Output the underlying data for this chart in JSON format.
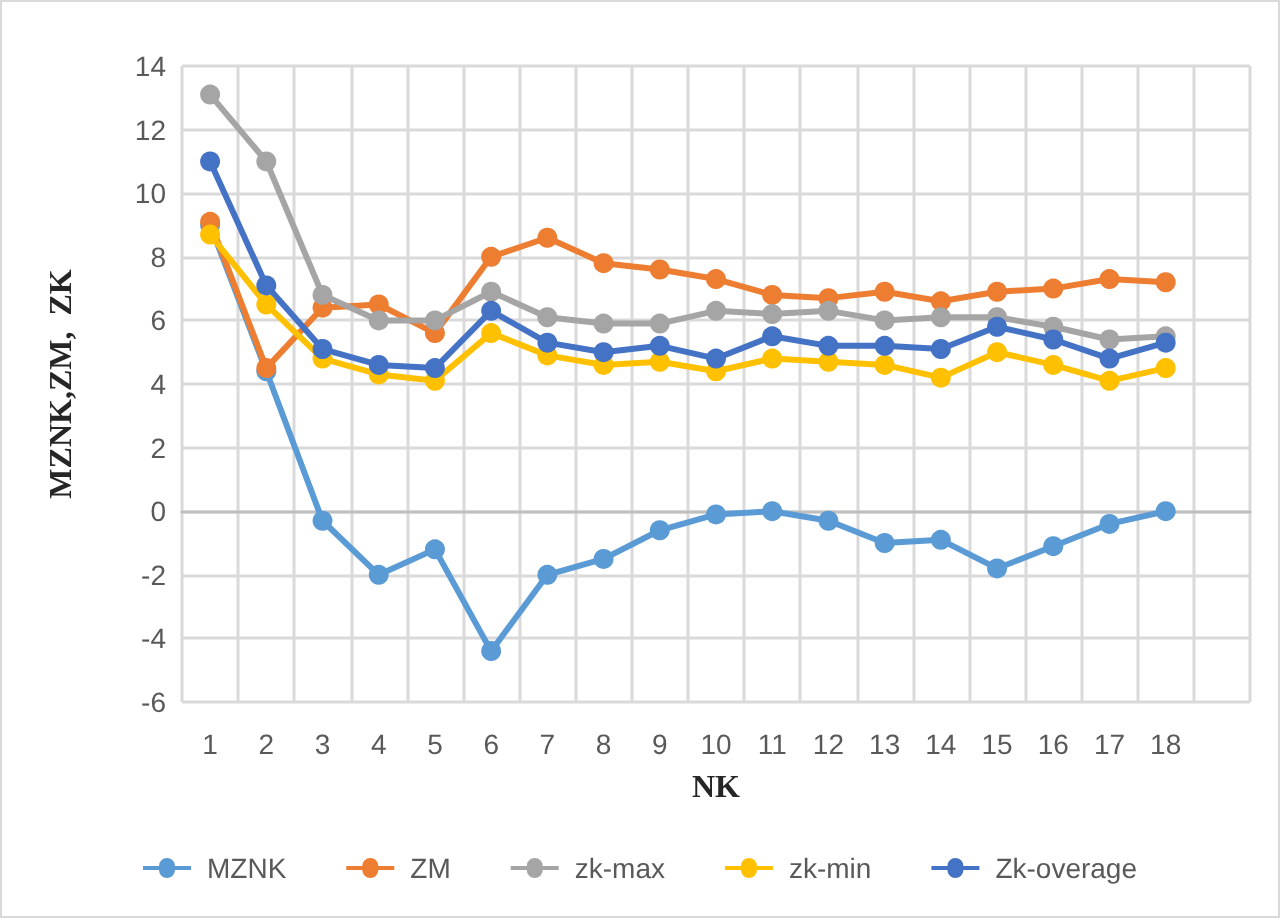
{
  "chart_data": {
    "type": "line",
    "xlabel": "NK",
    "ylabel": "MZNK,ZM,  ZK",
    "categories": [
      "1",
      "2",
      "3",
      "4",
      "5",
      "6",
      "7",
      "8",
      "9",
      "10",
      "11",
      "12",
      "13",
      "14",
      "15",
      "16",
      "17",
      "18",
      null
    ],
    "series": [
      {
        "name": "MZNK",
        "color": "#5b9bd5",
        "values": [
          9.0,
          4.4,
          -0.3,
          -2.0,
          -1.2,
          -4.4,
          -2.0,
          -1.5,
          -0.6,
          -0.1,
          0.0,
          -0.3,
          -1.0,
          -0.9,
          -1.8,
          -1.1,
          -0.4,
          0.0,
          null
        ]
      },
      {
        "name": "ZM",
        "color": "#ed7d31",
        "values": [
          9.1,
          4.5,
          6.4,
          6.5,
          5.6,
          8.0,
          8.6,
          7.8,
          7.6,
          7.3,
          6.8,
          6.7,
          6.9,
          6.6,
          6.9,
          7.0,
          7.3,
          7.2,
          null
        ]
      },
      {
        "name": "zk-max",
        "color": "#a5a5a5",
        "values": [
          13.1,
          11.0,
          6.8,
          6.0,
          6.0,
          6.9,
          6.1,
          5.9,
          5.9,
          6.3,
          6.2,
          6.3,
          6.0,
          6.1,
          6.1,
          5.8,
          5.4,
          5.5,
          null
        ]
      },
      {
        "name": "zk-min",
        "color": "#ffc000",
        "values": [
          8.7,
          6.5,
          4.8,
          4.3,
          4.1,
          5.6,
          4.9,
          4.6,
          4.7,
          4.4,
          4.8,
          4.7,
          4.6,
          4.2,
          5.0,
          4.6,
          4.1,
          4.5,
          null
        ]
      },
      {
        "name": "Zk-overage",
        "color": "#4472c4",
        "values": [
          11.0,
          7.1,
          5.1,
          4.6,
          4.5,
          6.3,
          5.3,
          5.0,
          5.2,
          4.8,
          5.5,
          5.2,
          5.2,
          5.1,
          5.8,
          5.4,
          4.8,
          5.3,
          null
        ]
      }
    ],
    "ylim": [
      -6,
      14
    ],
    "yticks": [
      -6,
      -4,
      -2,
      0,
      2,
      4,
      6,
      8,
      10,
      12,
      14
    ],
    "grid": true,
    "legend": "bottom",
    "marker": "circle",
    "line_style": "solid"
  }
}
